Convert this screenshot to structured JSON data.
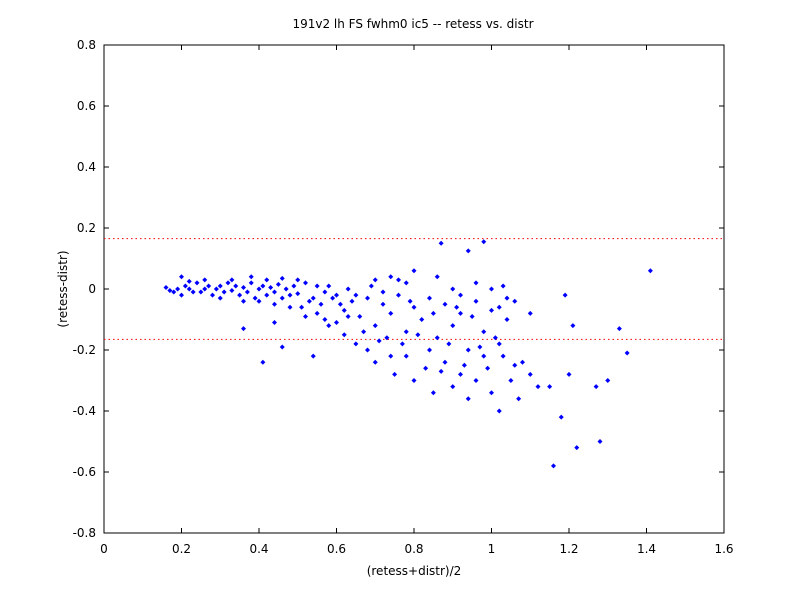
{
  "chart_data": {
    "type": "scatter",
    "title": "191v2 lh FS fwhm0 ic5 -- retess vs. distr",
    "xlabel": "(retess+distr)/2",
    "ylabel": "(retess-distr)",
    "xlim": [
      0,
      1.6
    ],
    "ylim": [
      -0.8,
      0.8
    ],
    "xticks": [
      "0",
      "0.2",
      "0.4",
      "0.6",
      "0.8",
      "1",
      "1.2",
      "1.4",
      "1.6"
    ],
    "yticks": [
      "-0.8",
      "-0.6",
      "-0.4",
      "-0.2",
      "0",
      "0.2",
      "0.4",
      "0.6",
      "0.8"
    ],
    "grid": false,
    "marker_color": "#0000ff",
    "reference_line_color": "#ff0000",
    "reference_lines_y": [
      0.165,
      -0.165
    ],
    "series": [
      {
        "points": [
          [
            0.16,
            0.005
          ],
          [
            0.17,
            -0.005
          ],
          [
            0.18,
            -0.01
          ],
          [
            0.19,
            0.0
          ],
          [
            0.2,
            0.04
          ],
          [
            0.2,
            -0.02
          ],
          [
            0.21,
            0.01
          ],
          [
            0.22,
            0.0
          ],
          [
            0.23,
            -0.01
          ],
          [
            0.24,
            0.02
          ],
          [
            0.25,
            -0.01
          ],
          [
            0.26,
            0.0
          ],
          [
            0.27,
            0.01
          ],
          [
            0.28,
            -0.02
          ],
          [
            0.29,
            0.0
          ],
          [
            0.3,
            0.01
          ],
          [
            0.31,
            -0.01
          ],
          [
            0.32,
            0.02
          ],
          [
            0.33,
            -0.005
          ],
          [
            0.34,
            0.01
          ],
          [
            0.35,
            -0.02
          ],
          [
            0.36,
            0.005
          ],
          [
            0.37,
            -0.01
          ],
          [
            0.38,
            0.02
          ],
          [
            0.39,
            -0.03
          ],
          [
            0.4,
            0.0
          ],
          [
            0.41,
            0.01
          ],
          [
            0.42,
            -0.02
          ],
          [
            0.43,
            0.005
          ],
          [
            0.44,
            -0.01
          ],
          [
            0.45,
            0.015
          ],
          [
            0.46,
            -0.03
          ],
          [
            0.47,
            0.0
          ],
          [
            0.48,
            -0.02
          ],
          [
            0.49,
            0.01
          ],
          [
            0.5,
            -0.015
          ],
          [
            0.22,
            0.025
          ],
          [
            0.26,
            0.03
          ],
          [
            0.3,
            -0.03
          ],
          [
            0.33,
            0.03
          ],
          [
            0.36,
            -0.04
          ],
          [
            0.38,
            0.04
          ],
          [
            0.4,
            -0.04
          ],
          [
            0.42,
            0.03
          ],
          [
            0.44,
            -0.05
          ],
          [
            0.46,
            0.035
          ],
          [
            0.48,
            -0.06
          ],
          [
            0.5,
            0.03
          ],
          [
            0.52,
            0.02
          ],
          [
            0.54,
            -0.03
          ],
          [
            0.56,
            -0.05
          ],
          [
            0.58,
            0.01
          ],
          [
            0.6,
            -0.02
          ],
          [
            0.62,
            -0.07
          ],
          [
            0.64,
            -0.04
          ],
          [
            0.66,
            -0.09
          ],
          [
            0.68,
            -0.03
          ],
          [
            0.7,
            -0.12
          ],
          [
            0.72,
            -0.05
          ],
          [
            0.74,
            -0.08
          ],
          [
            0.76,
            -0.02
          ],
          [
            0.78,
            -0.14
          ],
          [
            0.8,
            -0.06
          ],
          [
            0.82,
            -0.1
          ],
          [
            0.84,
            -0.03
          ],
          [
            0.86,
            -0.16
          ],
          [
            0.88,
            -0.05
          ],
          [
            0.9,
            -0.12
          ],
          [
            0.92,
            -0.08
          ],
          [
            0.94,
            -0.2
          ],
          [
            0.96,
            -0.04
          ],
          [
            0.98,
            -0.14
          ],
          [
            1.0,
            -0.07
          ],
          [
            1.02,
            -0.18
          ],
          [
            1.04,
            -0.1
          ],
          [
            1.06,
            -0.25
          ],
          [
            0.55,
            -0.08
          ],
          [
            0.58,
            -0.12
          ],
          [
            0.62,
            -0.15
          ],
          [
            0.65,
            -0.18
          ],
          [
            0.68,
            -0.2
          ],
          [
            0.7,
            -0.24
          ],
          [
            0.73,
            -0.16
          ],
          [
            0.75,
            -0.28
          ],
          [
            0.78,
            -0.22
          ],
          [
            0.8,
            -0.3
          ],
          [
            0.83,
            -0.26
          ],
          [
            0.85,
            -0.34
          ],
          [
            0.88,
            -0.24
          ],
          [
            0.9,
            -0.32
          ],
          [
            0.92,
            -0.28
          ],
          [
            0.94,
            -0.36
          ],
          [
            0.96,
            -0.3
          ],
          [
            0.98,
            -0.22
          ],
          [
            1.0,
            -0.34
          ],
          [
            1.02,
            -0.4
          ],
          [
            1.05,
            -0.3
          ],
          [
            1.07,
            -0.36
          ],
          [
            1.1,
            -0.28
          ],
          [
            1.12,
            -0.32
          ],
          [
            1.15,
            -0.32
          ],
          [
            1.18,
            -0.42
          ],
          [
            1.2,
            -0.28
          ],
          [
            1.22,
            -0.52
          ],
          [
            1.16,
            -0.58
          ],
          [
            1.28,
            -0.5
          ],
          [
            1.27,
            -0.32
          ],
          [
            1.3,
            -0.3
          ],
          [
            1.33,
            -0.13
          ],
          [
            1.35,
            -0.21
          ],
          [
            1.41,
            0.06
          ],
          [
            1.19,
            -0.02
          ],
          [
            1.21,
            -0.12
          ],
          [
            1.1,
            -0.08
          ],
          [
            1.06,
            -0.04
          ],
          [
            1.04,
            -0.03
          ],
          [
            1.03,
            0.01
          ],
          [
            0.98,
            0.155
          ],
          [
            0.87,
            0.15
          ],
          [
            0.94,
            0.125
          ],
          [
            0.8,
            0.06
          ],
          [
            0.78,
            0.02
          ],
          [
            0.76,
            0.03
          ],
          [
            0.74,
            0.04
          ],
          [
            0.72,
            -0.01
          ],
          [
            0.7,
            0.03
          ],
          [
            0.69,
            0.01
          ],
          [
            0.86,
            0.04
          ],
          [
            0.9,
            0.0
          ],
          [
            0.92,
            -0.02
          ],
          [
            0.96,
            0.02
          ],
          [
            1.0,
            0.0
          ],
          [
            1.02,
            -0.06
          ],
          [
            0.46,
            -0.19
          ],
          [
            0.41,
            -0.24
          ],
          [
            0.54,
            -0.22
          ],
          [
            0.36,
            -0.13
          ],
          [
            0.44,
            -0.11
          ],
          [
            0.52,
            -0.09
          ],
          [
            0.57,
            -0.1
          ],
          [
            0.6,
            -0.11
          ],
          [
            0.63,
            -0.09
          ],
          [
            0.67,
            -0.14
          ],
          [
            0.71,
            -0.17
          ],
          [
            0.74,
            -0.22
          ],
          [
            0.77,
            -0.18
          ],
          [
            0.81,
            -0.15
          ],
          [
            0.84,
            -0.2
          ],
          [
            0.87,
            -0.27
          ],
          [
            0.89,
            -0.18
          ],
          [
            0.93,
            -0.25
          ],
          [
            0.97,
            -0.19
          ],
          [
            0.99,
            -0.26
          ],
          [
            1.01,
            -0.16
          ],
          [
            1.03,
            -0.22
          ],
          [
            1.08,
            -0.24
          ],
          [
            0.95,
            -0.09
          ],
          [
            0.91,
            -0.06
          ],
          [
            0.85,
            -0.08
          ],
          [
            0.79,
            -0.04
          ],
          [
            0.63,
            0.0
          ],
          [
            0.65,
            -0.02
          ],
          [
            0.61,
            -0.05
          ],
          [
            0.59,
            -0.03
          ],
          [
            0.57,
            -0.01
          ],
          [
            0.55,
            0.01
          ],
          [
            0.53,
            -0.04
          ],
          [
            0.51,
            -0.06
          ]
        ]
      }
    ]
  }
}
